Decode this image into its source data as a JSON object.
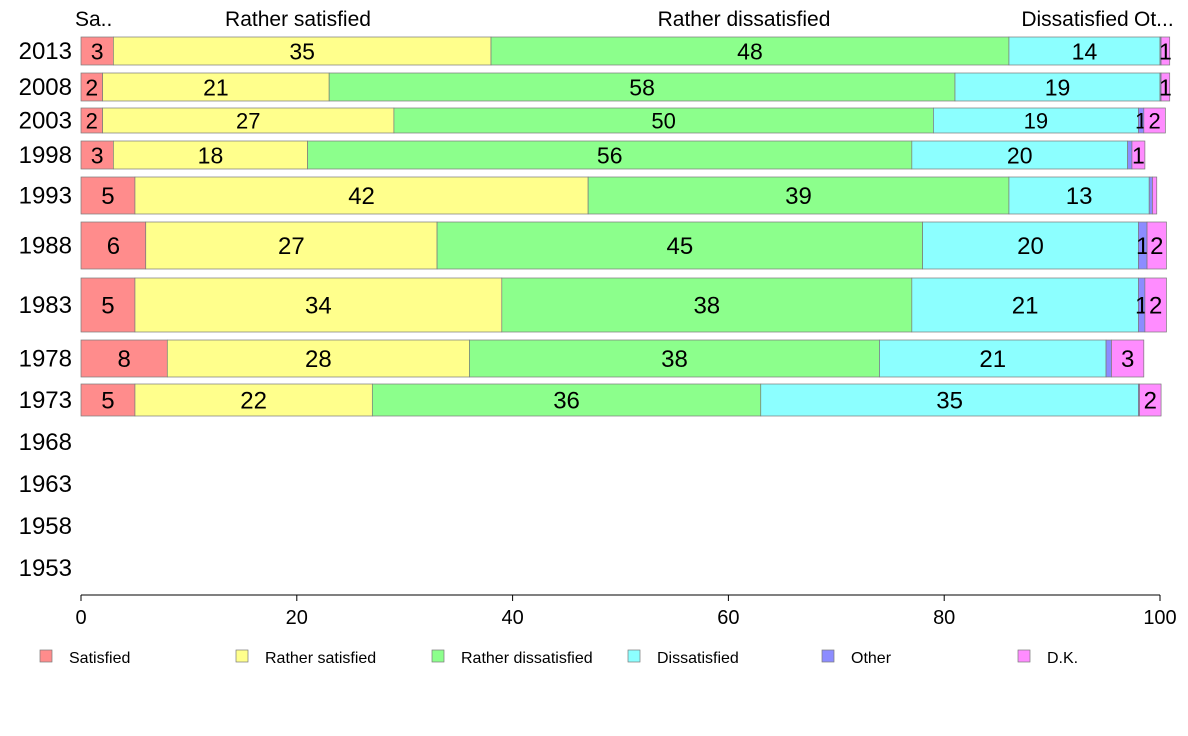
{
  "chart_data": {
    "type": "bar",
    "orientation": "horizontal",
    "stacked": true,
    "categories": [
      "2013",
      "2008",
      "2003",
      "1998",
      "1993",
      "1988",
      "1983",
      "1978",
      "1973",
      "1968",
      "1963",
      "1958",
      "1953"
    ],
    "series": [
      {
        "name": "Satisfied",
        "color": "#ff8c8c",
        "values": [
          3,
          2,
          2,
          3,
          5,
          6,
          5,
          8,
          5,
          null,
          null,
          null,
          null
        ],
        "labels": [
          "3",
          "2",
          "2",
          "3",
          "5",
          "6",
          "5",
          "8",
          "5",
          "",
          "",
          "",
          ""
        ]
      },
      {
        "name": "Rather satisfied",
        "color": "#ffff8c",
        "values": [
          35,
          21,
          27,
          18,
          42,
          27,
          34,
          28,
          22,
          null,
          null,
          null,
          null
        ],
        "labels": [
          "35",
          "21",
          "27",
          "18",
          "42",
          "27",
          "34",
          "28",
          "22",
          "",
          "",
          "",
          ""
        ]
      },
      {
        "name": "Rather dissatisfied",
        "color": "#8cff8c",
        "values": [
          48,
          58,
          50,
          56,
          39,
          45,
          38,
          38,
          36,
          null,
          null,
          null,
          null
        ],
        "labels": [
          "48",
          "58",
          "50",
          "56",
          "39",
          "45",
          "38",
          "38",
          "36",
          "",
          "",
          "",
          ""
        ]
      },
      {
        "name": "Dissatisfied",
        "color": "#8cffff",
        "values": [
          14,
          19,
          19,
          20,
          13,
          20,
          21,
          21,
          35,
          null,
          null,
          null,
          null
        ],
        "labels": [
          "14",
          "19",
          "19",
          "20",
          "13",
          "20",
          "21",
          "21",
          "35",
          "",
          "",
          "",
          ""
        ]
      },
      {
        "name": "Other",
        "color": "#8c8cff",
        "values": [
          0.1,
          0.1,
          0.5,
          0.4,
          0.3,
          0.8,
          0.6,
          0.5,
          0.1,
          null,
          null,
          null,
          null
        ],
        "labels": [
          "",
          "",
          "1",
          "",
          "",
          "1",
          "1",
          "",
          "",
          "",
          "",
          "",
          ""
        ]
      },
      {
        "name": "D.K.",
        "color": "#ff8cff",
        "values": [
          0.8,
          0.8,
          2,
          1.2,
          0.4,
          1.8,
          2,
          3,
          2,
          null,
          null,
          null,
          null
        ],
        "labels": [
          "1",
          "1",
          "2",
          "1",
          "",
          "2",
          "2",
          "3",
          "2",
          "",
          "",
          "",
          ""
        ]
      }
    ],
    "top_labels": [
      "Sa..",
      "Rather satisfied",
      "Rather dissatisfied",
      "Dissatisfied",
      "Ot..."
    ],
    "xlim": [
      0,
      100
    ],
    "xticks": [
      "0",
      "20",
      "40",
      "60",
      "80",
      "100"
    ],
    "xlabel": "",
    "ylabel": "",
    "title": "",
    "grid": false,
    "legend_position": "bottom"
  }
}
